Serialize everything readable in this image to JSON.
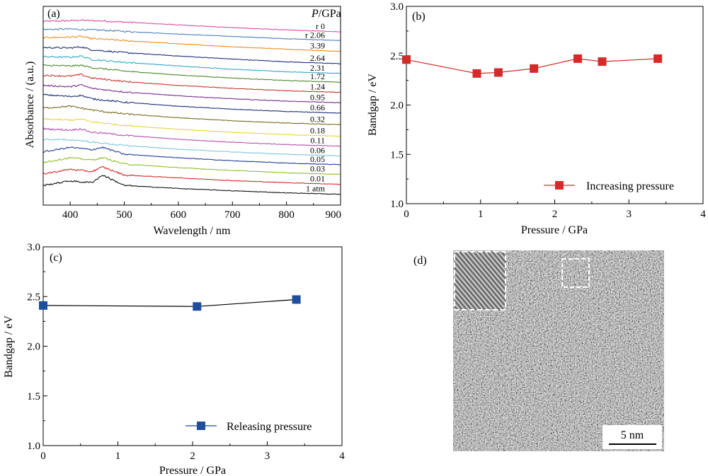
{
  "chart_data": [
    {
      "panel": "a",
      "type": "line",
      "panel_label": "(a)",
      "xlabel": "Wavelength / nm",
      "ylabel": "Absorbance / (a.u.)",
      "legend_title": "P/GPa",
      "xlim": [
        350,
        900
      ],
      "xticks": [
        400,
        500,
        600,
        700,
        800,
        900
      ],
      "x": [
        350,
        400,
        420,
        440,
        460,
        500,
        600,
        700,
        800,
        900
      ],
      "series": [
        {
          "name": "r 0",
          "color": "#d94fa0",
          "values": [
            7.95,
            7.98,
            8.0,
            7.98,
            7.97,
            7.92,
            7.8,
            7.68,
            7.58,
            7.5
          ]
        },
        {
          "name": "r 2.06",
          "color": "#4a7fc1",
          "values": [
            7.6,
            7.62,
            7.6,
            7.58,
            7.57,
            7.52,
            7.4,
            7.3,
            7.2,
            7.12
          ]
        },
        {
          "name": "3.39",
          "color": "#f08a24",
          "values": [
            7.25,
            7.27,
            7.3,
            7.2,
            7.18,
            7.12,
            6.98,
            6.85,
            6.75,
            6.65
          ]
        },
        {
          "name": "2.64",
          "color": "#1c2f7a",
          "values": [
            6.82,
            6.8,
            6.85,
            6.72,
            6.68,
            6.6,
            6.45,
            6.32,
            6.2,
            6.12
          ]
        },
        {
          "name": "2.31",
          "color": "#3aa5c9",
          "values": [
            6.42,
            6.4,
            6.45,
            6.3,
            6.26,
            6.18,
            6.02,
            5.88,
            5.77,
            5.7
          ]
        },
        {
          "name": "1.72",
          "color": "#4a8a2a",
          "values": [
            6.05,
            6.02,
            6.05,
            5.95,
            5.9,
            5.8,
            5.63,
            5.5,
            5.39,
            5.32
          ]
        },
        {
          "name": "1.24",
          "color": "#c0392b",
          "values": [
            5.62,
            5.58,
            5.65,
            5.5,
            5.45,
            5.35,
            5.18,
            5.05,
            4.95,
            4.88
          ]
        },
        {
          "name": "0.95",
          "color": "#7b2d8e",
          "values": [
            5.18,
            5.12,
            5.2,
            5.05,
            5.0,
            4.9,
            4.73,
            4.6,
            4.5,
            4.43
          ]
        },
        {
          "name": "0.66",
          "color": "#1c2f7a",
          "values": [
            4.78,
            4.7,
            4.75,
            4.6,
            4.55,
            4.45,
            4.28,
            4.15,
            4.05,
            3.98
          ]
        },
        {
          "name": "0.32",
          "color": "#7a6a1e",
          "values": [
            4.2,
            4.28,
            4.2,
            4.12,
            4.05,
            3.95,
            3.78,
            3.65,
            3.55,
            3.48
          ]
        },
        {
          "name": "0.18",
          "color": "#e6d53a",
          "values": [
            3.72,
            3.68,
            3.72,
            3.6,
            3.55,
            3.45,
            3.28,
            3.15,
            3.05,
            2.98
          ]
        },
        {
          "name": "0.11",
          "color": "#b44fb0",
          "values": [
            3.3,
            3.25,
            3.3,
            3.15,
            3.12,
            3.02,
            2.85,
            2.72,
            2.62,
            2.55
          ]
        },
        {
          "name": "0.06",
          "color": "#7cc6df",
          "values": [
            2.85,
            2.82,
            2.8,
            2.72,
            2.68,
            2.58,
            2.42,
            2.3,
            2.2,
            2.13
          ]
        },
        {
          "name": "0.05",
          "color": "#1f3f99",
          "values": [
            2.3,
            2.5,
            2.45,
            2.4,
            2.5,
            2.2,
            2.05,
            1.92,
            1.82,
            1.75
          ]
        },
        {
          "name": "0.03",
          "color": "#8fbf2a",
          "values": [
            1.85,
            2.05,
            2.0,
            1.95,
            2.05,
            1.78,
            1.62,
            1.5,
            1.4,
            1.33
          ]
        },
        {
          "name": "0.01",
          "color": "#d42a2a",
          "values": [
            1.35,
            1.55,
            1.5,
            1.45,
            1.65,
            1.3,
            1.18,
            1.06,
            0.97,
            0.9
          ]
        },
        {
          "name": "1 atm",
          "color": "#111111",
          "values": [
            0.85,
            1.05,
            1.0,
            0.98,
            1.3,
            0.85,
            0.72,
            0.62,
            0.53,
            0.47
          ]
        }
      ]
    },
    {
      "panel": "b",
      "type": "line",
      "panel_label": "(b)",
      "xlabel": "Pressure / GPa",
      "ylabel": "Bandgap / eV",
      "xlim": [
        0,
        4
      ],
      "ylim": [
        1.0,
        3.0
      ],
      "xticks": [
        "0",
        "1",
        "2",
        "3",
        "4"
      ],
      "yticks": [
        "1.0",
        "1.5",
        "2.0",
        "2.5",
        "3.0"
      ],
      "legend_position": "bottom-right",
      "series": [
        {
          "name": "Increasing pressure",
          "color": "#d42a2a",
          "marker": "square",
          "x": [
            0,
            0.95,
            1.24,
            1.72,
            2.31,
            2.64,
            3.39
          ],
          "y": [
            2.46,
            2.32,
            2.33,
            2.37,
            2.47,
            2.44,
            2.47
          ]
        }
      ]
    },
    {
      "panel": "c",
      "type": "line",
      "panel_label": "(c)",
      "xlabel": "Pressure / GPa",
      "ylabel": "Bandgap / eV",
      "xlim": [
        0,
        4
      ],
      "ylim": [
        1.0,
        3.0
      ],
      "xticks": [
        "0",
        "1",
        "2",
        "3",
        "4"
      ],
      "yticks": [
        "1.0",
        "1.5",
        "2.0",
        "2.5",
        "3.0"
      ],
      "legend_position": "bottom-right",
      "series": [
        {
          "name": "Releasing pressure",
          "color": "#1f4e9c",
          "marker": "square",
          "x": [
            0,
            2.06,
            3.39
          ],
          "y": [
            2.41,
            2.4,
            2.47
          ]
        }
      ]
    }
  ],
  "image_panel": {
    "panel_label": "(d)",
    "scale_bar": "5 nm"
  }
}
